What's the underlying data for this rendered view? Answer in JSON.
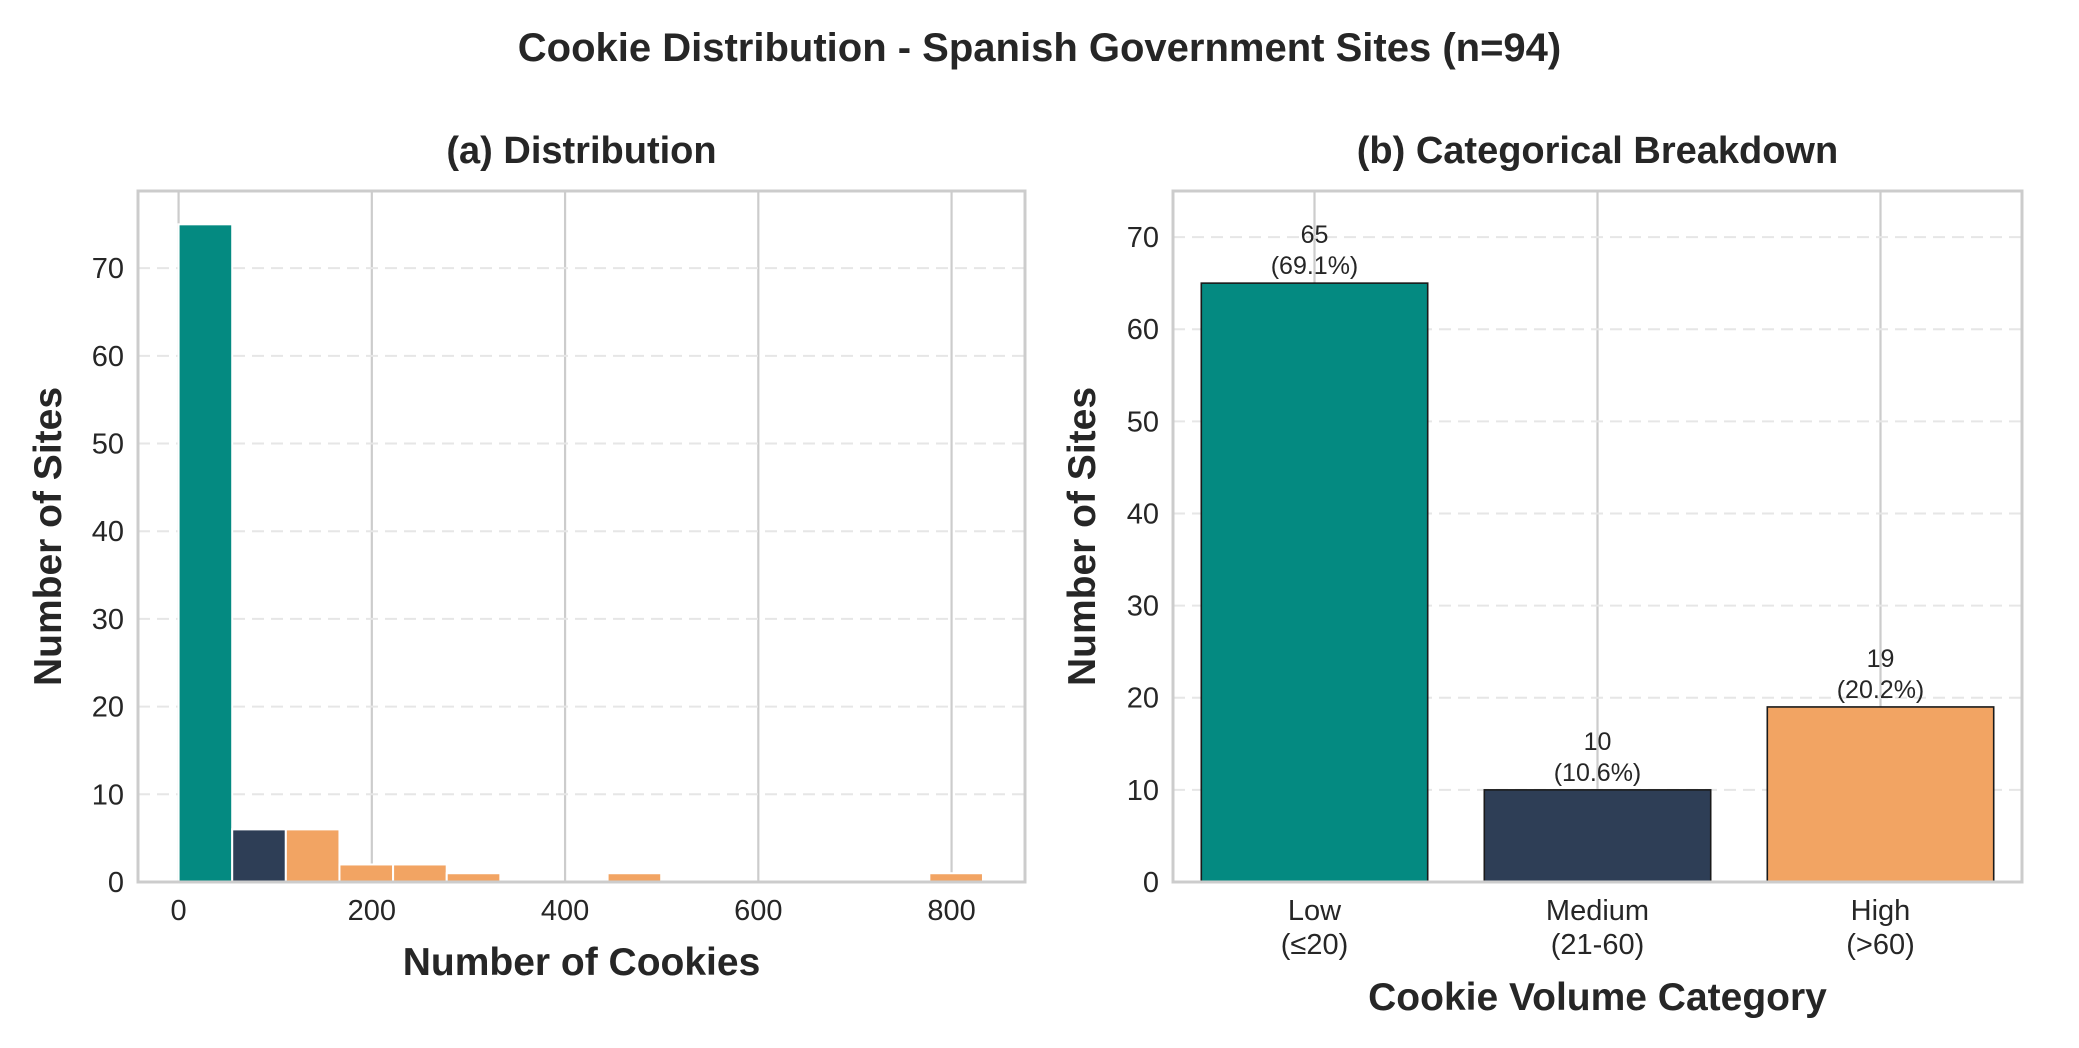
{
  "title": "Cookie Distribution - Spanish Government Sites (n=94)",
  "colors": {
    "low": "#048a81",
    "medium": "#2e3e56",
    "high": "#f2a463",
    "axes": "#cccccc",
    "text": "#262626"
  },
  "chart_data": [
    {
      "type": "bar",
      "subtype": "histogram",
      "title": "(a) Distribution",
      "xlabel": "Number of Cookies",
      "ylabel": "Number of Sites",
      "xlim": [
        -42,
        876
      ],
      "ylim": [
        0,
        78.8
      ],
      "xticks": [
        0,
        200,
        400,
        600,
        800
      ],
      "yticks": [
        0,
        10,
        20,
        30,
        40,
        50,
        60,
        70
      ],
      "grid": "x major solid, y dashed",
      "bins": [
        {
          "x0": 0,
          "x1": 55.5,
          "count": 75,
          "category": "low"
        },
        {
          "x0": 55.5,
          "x1": 111,
          "count": 6,
          "category": "medium"
        },
        {
          "x0": 111,
          "x1": 166.5,
          "count": 6,
          "category": "high"
        },
        {
          "x0": 166.5,
          "x1": 222,
          "count": 2,
          "category": "high"
        },
        {
          "x0": 222,
          "x1": 277.5,
          "count": 2,
          "category": "high"
        },
        {
          "x0": 277.5,
          "x1": 333,
          "count": 1,
          "category": "high"
        },
        {
          "x0": 333,
          "x1": 388.5,
          "count": 0,
          "category": "high"
        },
        {
          "x0": 388.5,
          "x1": 444,
          "count": 0,
          "category": "high"
        },
        {
          "x0": 444,
          "x1": 499.5,
          "count": 1,
          "category": "high"
        },
        {
          "x0": 499.5,
          "x1": 555,
          "count": 0,
          "category": "high"
        },
        {
          "x0": 555,
          "x1": 610.5,
          "count": 0,
          "category": "high"
        },
        {
          "x0": 610.5,
          "x1": 666,
          "count": 0,
          "category": "high"
        },
        {
          "x0": 666,
          "x1": 721.5,
          "count": 0,
          "category": "high"
        },
        {
          "x0": 721.5,
          "x1": 777,
          "count": 0,
          "category": "high"
        },
        {
          "x0": 777,
          "x1": 832.5,
          "count": 1,
          "category": "high"
        }
      ]
    },
    {
      "type": "bar",
      "title": "(b) Categorical Breakdown",
      "xlabel": "Cookie Volume Category",
      "ylabel": "Number of Sites",
      "ylim": [
        0,
        75
      ],
      "yticks": [
        0,
        10,
        20,
        30,
        40,
        50,
        60,
        70
      ],
      "grid": "x major solid, y dashed",
      "categories": [
        {
          "line1": "Low",
          "line2": "(≤20)",
          "value": 65,
          "count_label": "65",
          "pct_label": "(69.1%)",
          "category": "low"
        },
        {
          "line1": "Medium",
          "line2": "(21-60)",
          "value": 10,
          "count_label": "10",
          "pct_label": "(10.6%)",
          "category": "medium"
        },
        {
          "line1": "High",
          "line2": "(>60)",
          "value": 19,
          "count_label": "19",
          "pct_label": "(20.2%)",
          "category": "high"
        }
      ]
    }
  ]
}
